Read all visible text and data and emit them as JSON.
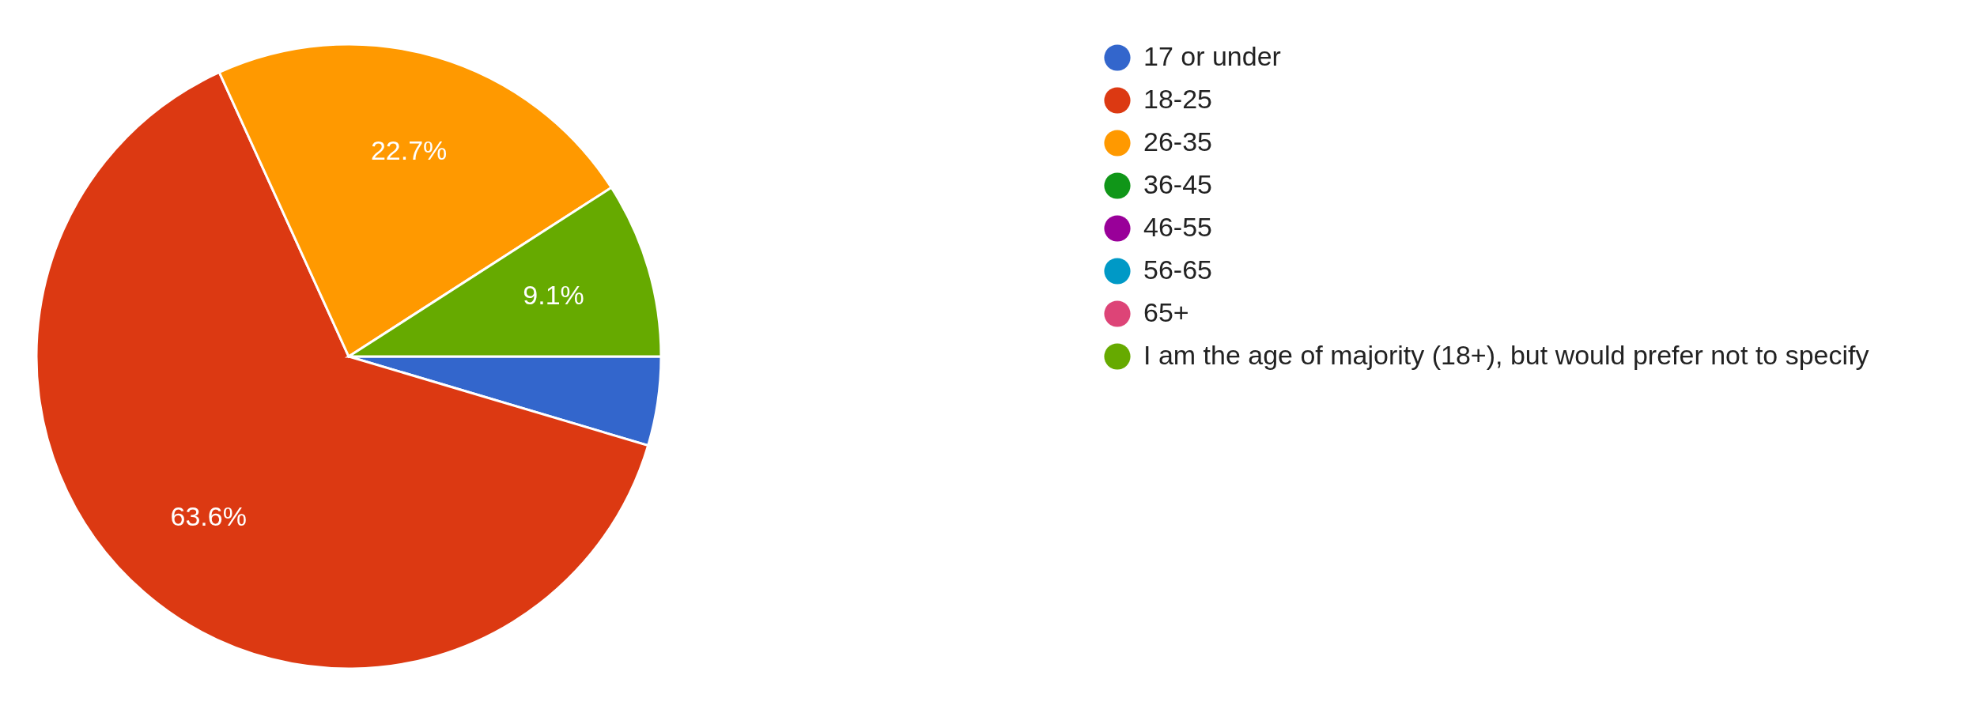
{
  "chart_data": {
    "type": "pie",
    "categories": [
      "17 or under",
      "18-25",
      "26-35",
      "36-45",
      "46-55",
      "56-65",
      "65+",
      "I am the age of majority (18+), but would prefer not to specify"
    ],
    "values": [
      4.6,
      63.6,
      22.7,
      0,
      0,
      0,
      0,
      9.1
    ],
    "colors": [
      "#3366cc",
      "#dc3912",
      "#ff9900",
      "#109618",
      "#990099",
      "#0099c6",
      "#dd4477",
      "#66aa00"
    ],
    "value_labels": [
      null,
      "63.6%",
      "22.7%",
      null,
      null,
      null,
      null,
      "9.1%"
    ],
    "legend": "right"
  }
}
